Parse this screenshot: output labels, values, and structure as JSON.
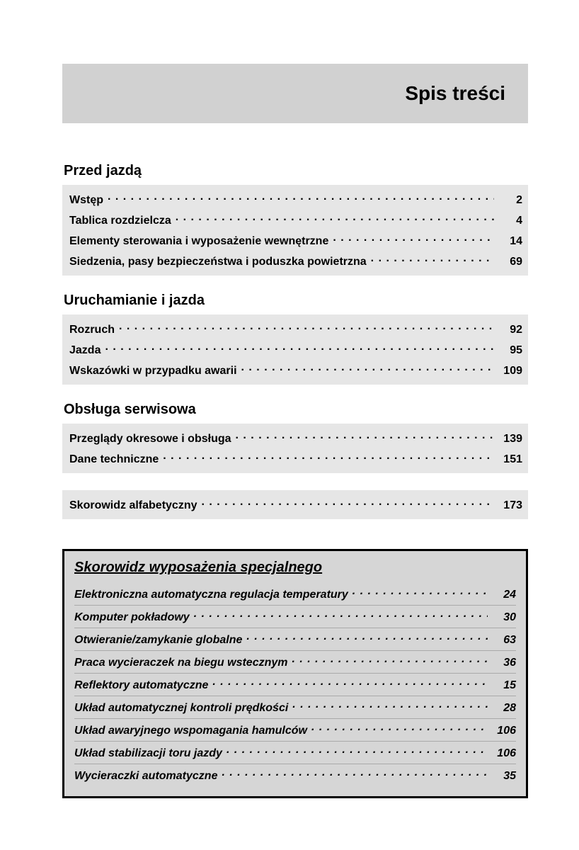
{
  "title": "Spis treści",
  "colors": {
    "page_bg": "#ffffff",
    "banner_bg": "#d1d1d1",
    "section_bg": "#e6e6e6",
    "special_bg": "#d6d6d6",
    "special_border": "#000000",
    "text": "#000000",
    "separator": "#aaaaaa"
  },
  "typography": {
    "title_fontsize": 28,
    "heading_fontsize": 20,
    "row_fontsize": 16,
    "font_family": "Arial"
  },
  "sections": [
    {
      "heading": "Przed jazdą",
      "items": [
        {
          "label": "Wstęp",
          "page": "2"
        },
        {
          "label": "Tablica rozdzielcza",
          "page": "4"
        },
        {
          "label": "Elementy sterowania i wyposażenie wewnętrzne",
          "page": "14"
        },
        {
          "label": "Siedzenia, pasy bezpieczeństwa i poduszka powietrzna",
          "page": "69"
        }
      ]
    },
    {
      "heading": "Uruchamianie i jazda",
      "items": [
        {
          "label": "Rozruch",
          "page": "92"
        },
        {
          "label": "Jazda",
          "page": "95"
        },
        {
          "label": "Wskazówki w przypadku awarii",
          "page": "109"
        }
      ]
    },
    {
      "heading": "Obsługa serwisowa",
      "items": [
        {
          "label": "Przeglądy okresowe i obsługa",
          "page": "139"
        },
        {
          "label": "Dane techniczne",
          "page": "151"
        }
      ]
    }
  ],
  "index_row": {
    "label": "Skorowidz alfabetyczny",
    "page": "173"
  },
  "special": {
    "heading": "Skorowidz wyposażenia specjalnego",
    "items": [
      {
        "label": "Elektroniczna automatyczna regulacja temperatury",
        "page": "24"
      },
      {
        "label": "Komputer pokładowy",
        "page": "30"
      },
      {
        "label": "Otwieranie/zamykanie globalne",
        "page": "63"
      },
      {
        "label": "Praca wycieraczek na biegu wstecznym",
        "page": "36"
      },
      {
        "label": "Reflektory automatyczne",
        "page": "15"
      },
      {
        "label": "Układ automatycznej kontroli prędkości",
        "page": "28"
      },
      {
        "label": "Układ awaryjnego wspomagania hamulców",
        "page": "106"
      },
      {
        "label": "Układ stabilizacji toru jazdy",
        "page": "106"
      },
      {
        "label": "Wycieraczki automatyczne",
        "page": "35"
      }
    ]
  }
}
